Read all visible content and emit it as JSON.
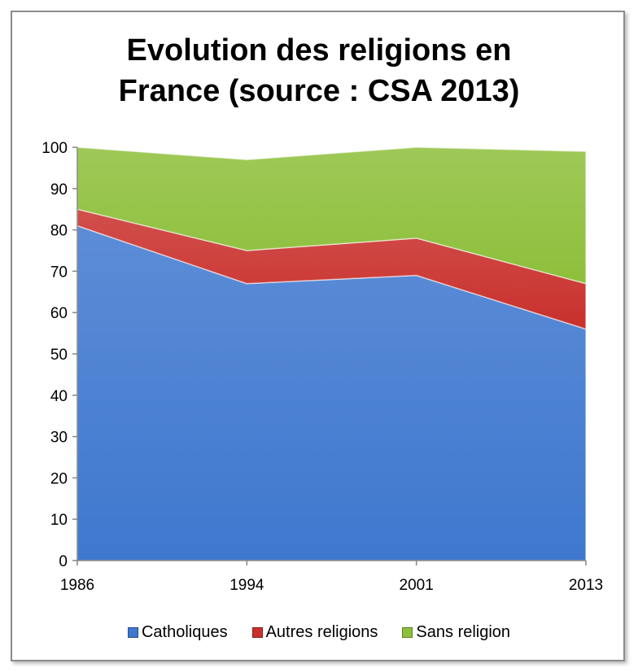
{
  "chart_data": {
    "type": "area",
    "stacked": true,
    "title_lines": [
      "Evolution des religions en",
      "France (source : CSA 2013)"
    ],
    "categories": [
      "1986",
      "1994",
      "2001",
      "2013"
    ],
    "series": [
      {
        "name": "Catholiques",
        "values": [
          81,
          67,
          69,
          56
        ],
        "color": "#3f78cf"
      },
      {
        "name": "Autres religions",
        "values": [
          4,
          8,
          9,
          11
        ],
        "color": "#c9302c"
      },
      {
        "name": "Sans religion",
        "values": [
          15,
          22,
          22,
          32
        ],
        "color": "#8dbf3a"
      }
    ],
    "ylim": [
      0,
      100
    ],
    "yticks": [
      "0",
      "10",
      "20",
      "30",
      "40",
      "50",
      "60",
      "70",
      "80",
      "90",
      "100"
    ],
    "grid": false,
    "legend_position": "bottom"
  }
}
